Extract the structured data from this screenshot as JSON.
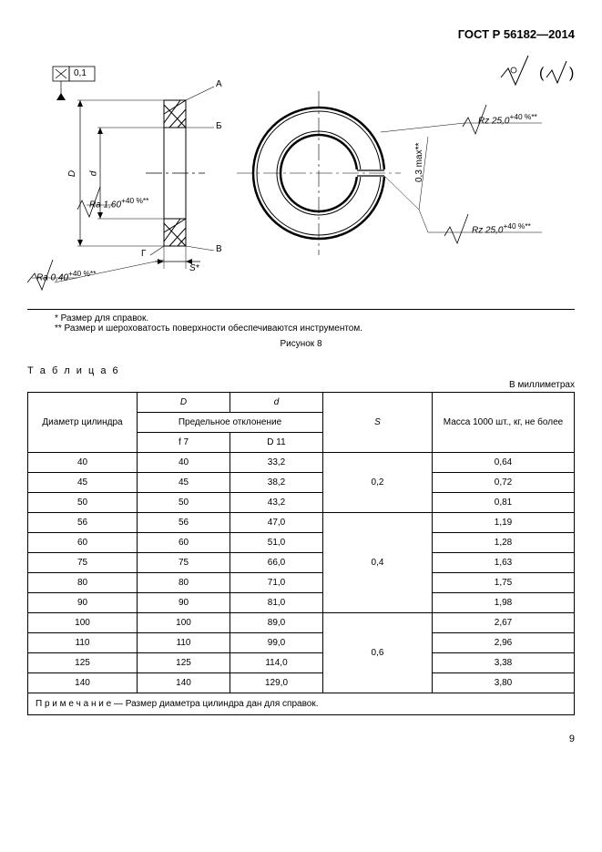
{
  "doc_header": "ГОСТ Р 56182—2014",
  "diagram": {
    "tol_box": "0,1",
    "leader_A": "А",
    "leader_B": "Б",
    "leader_V": "В",
    "leader_G": "Г",
    "dim_D": "D",
    "dim_d": "d",
    "dim_S": "S*",
    "dim_max": "0,3 max**",
    "ra1": "Ra 1,60",
    "ra1_sup": "+40 %**",
    "ra2": "Ra 0,40",
    "ra2_sup": "+40 %**",
    "rz1": "Rz 25,0",
    "rz1_sup": "+40 %**",
    "rz2": "Rz 25,0",
    "rz2_sup": "+40 %**",
    "surface_note_paren": "(  )",
    "footnote1": "* Размер для справок.",
    "footnote2": "** Размер и шероховатость поверхности обеспечиваются инструментом.",
    "caption": "Рисунок 8"
  },
  "table": {
    "label": "Т а б л и ц а   6",
    "units": "В миллиметрах",
    "headers": {
      "col1": "Диаметр цилиндра",
      "col2": "D",
      "col3": "d",
      "mid": "Предельное отклонение",
      "f7": "f 7",
      "D11": "D 11",
      "S": "S",
      "mass": "Масса 1000 шт., кг, не более"
    },
    "groups": [
      {
        "S": "0,2",
        "rows": [
          {
            "c": "40",
            "D": "40",
            "d": "33,2",
            "m": "0,64"
          },
          {
            "c": "45",
            "D": "45",
            "d": "38,2",
            "m": "0,72"
          },
          {
            "c": "50",
            "D": "50",
            "d": "43,2",
            "m": "0,81"
          }
        ]
      },
      {
        "S": "0,4",
        "rows": [
          {
            "c": "56",
            "D": "56",
            "d": "47,0",
            "m": "1,19"
          },
          {
            "c": "60",
            "D": "60",
            "d": "51,0",
            "m": "1,28"
          },
          {
            "c": "75",
            "D": "75",
            "d": "66,0",
            "m": "1,63"
          },
          {
            "c": "80",
            "D": "80",
            "d": "71,0",
            "m": "1,75"
          },
          {
            "c": "90",
            "D": "90",
            "d": "81,0",
            "m": "1,98"
          }
        ]
      },
      {
        "S": "0,6",
        "rows": [
          {
            "c": "100",
            "D": "100",
            "d": "89,0",
            "m": "2,67"
          },
          {
            "c": "110",
            "D": "110",
            "d": "99,0",
            "m": "2,96"
          },
          {
            "c": "125",
            "D": "125",
            "d": "114,0",
            "m": "3,38"
          },
          {
            "c": "140",
            "D": "140",
            "d": "129,0",
            "m": "3,80"
          }
        ]
      }
    ],
    "note": "П р и м е ч а н и е   —   Размер диаметра цилиндра дан для справок."
  },
  "page_number": "9"
}
